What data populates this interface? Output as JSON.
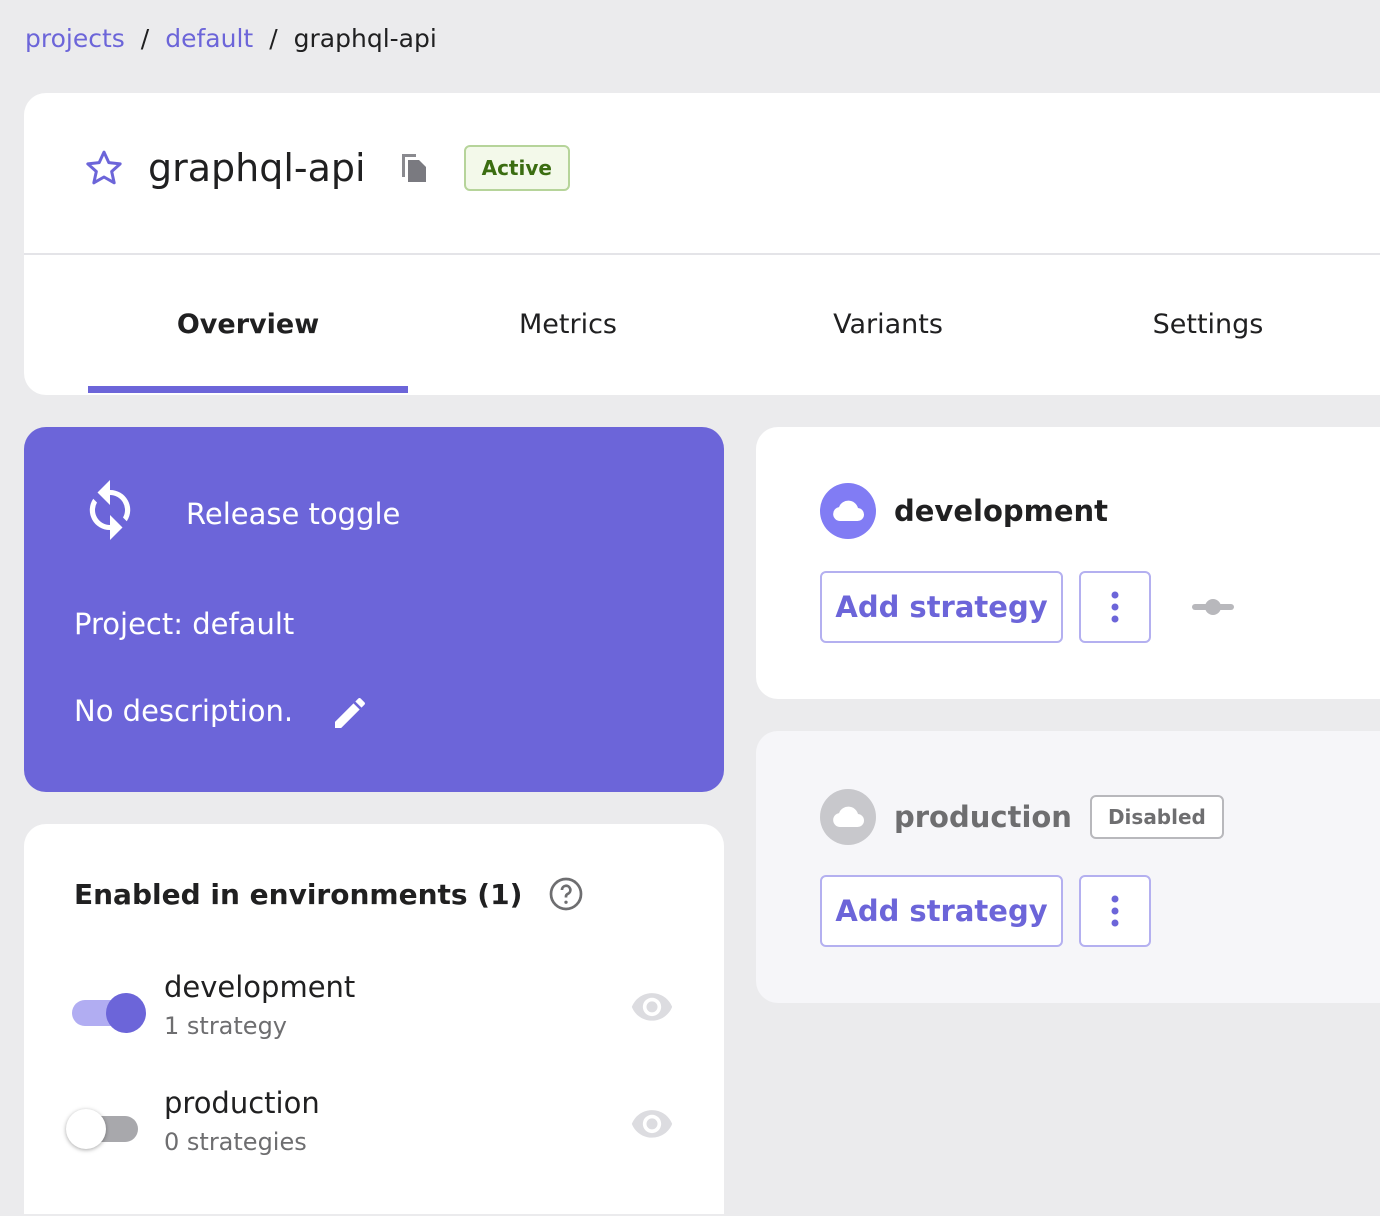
{
  "breadcrumb": {
    "items": [
      "projects",
      "default"
    ],
    "current": "graphql-api",
    "separator": "/"
  },
  "header": {
    "title": "graphql-api",
    "status": "Active",
    "tabs": [
      "Overview",
      "Metrics",
      "Variants",
      "Settings"
    ],
    "active_tab": "Overview"
  },
  "info": {
    "type": "Release toggle",
    "project": "Project: default",
    "description": "No description."
  },
  "environments_panel": {
    "title": "Enabled in environments (1)",
    "items": [
      {
        "name": "development",
        "sub": "1 strategy",
        "enabled": true
      },
      {
        "name": "production",
        "sub": "0 strategies",
        "enabled": false
      }
    ]
  },
  "env_cards": [
    {
      "name": "development",
      "add_label": "Add strategy",
      "badge": null
    },
    {
      "name": "production",
      "add_label": "Add strategy",
      "badge": "Disabled"
    }
  ],
  "colors": {
    "accent": "#6c65d9",
    "background": "#ebebed",
    "active_badge": "#3b6d11"
  }
}
